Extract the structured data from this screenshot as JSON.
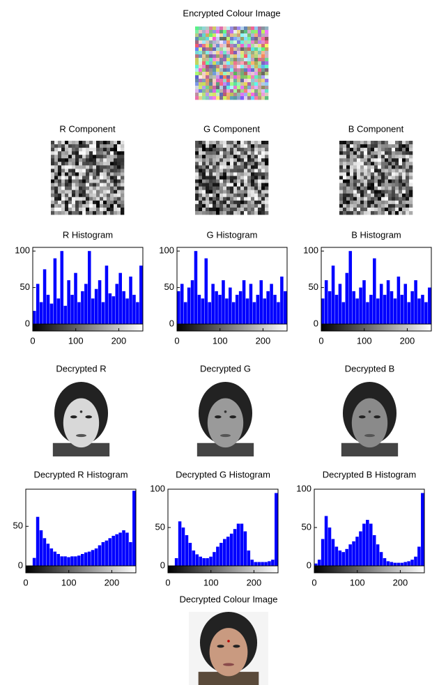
{
  "images": [
    {
      "title": "Encrypted Colour Image"
    },
    {
      "title": "R Component"
    },
    {
      "title": "G Component"
    },
    {
      "title": "B Component"
    },
    {
      "title": "Decrypted R"
    },
    {
      "title": "Decrypted G"
    },
    {
      "title": "Decrypted B"
    },
    {
      "title": "Decrypted Colour Image"
    }
  ],
  "chart_data": [
    {
      "type": "histogram",
      "title": "R Histogram",
      "color": "#0000ff",
      "bins": [
        0,
        8,
        16,
        24,
        32,
        40,
        48,
        56,
        64,
        72,
        80,
        88,
        96,
        104,
        112,
        120,
        128,
        136,
        144,
        152,
        160,
        168,
        176,
        184,
        192,
        200,
        208,
        216,
        224,
        232,
        240,
        248,
        256
      ],
      "counts": [
        18,
        55,
        30,
        75,
        40,
        28,
        90,
        35,
        100,
        25,
        60,
        40,
        70,
        30,
        45,
        55,
        100,
        35,
        48,
        60,
        30,
        80,
        42,
        38,
        55,
        70,
        45,
        35,
        65,
        40,
        30,
        80
      ],
      "xlim": [
        0,
        256
      ],
      "ylim": [
        0,
        105
      ],
      "xticks": [
        0,
        100,
        200
      ],
      "yticks": [
        0,
        50,
        100
      ]
    },
    {
      "type": "histogram",
      "title": "G Histogram",
      "color": "#0000ff",
      "bins": [
        0,
        8,
        16,
        24,
        32,
        40,
        48,
        56,
        64,
        72,
        80,
        88,
        96,
        104,
        112,
        120,
        128,
        136,
        144,
        152,
        160,
        168,
        176,
        184,
        192,
        200,
        208,
        216,
        224,
        232,
        240,
        248,
        256
      ],
      "counts": [
        45,
        55,
        30,
        50,
        60,
        100,
        40,
        35,
        90,
        30,
        55,
        45,
        40,
        60,
        35,
        50,
        30,
        40,
        45,
        60,
        35,
        55,
        30,
        40,
        60,
        35,
        45,
        55,
        40,
        30,
        65,
        45
      ],
      "xlim": [
        0,
        256
      ],
      "ylim": [
        0,
        105
      ],
      "xticks": [
        0,
        100,
        200
      ],
      "yticks": [
        0,
        50,
        100
      ]
    },
    {
      "type": "histogram",
      "title": "B Histogram",
      "color": "#0000ff",
      "bins": [
        0,
        8,
        16,
        24,
        32,
        40,
        48,
        56,
        64,
        72,
        80,
        88,
        96,
        104,
        112,
        120,
        128,
        136,
        144,
        152,
        160,
        168,
        176,
        184,
        192,
        200,
        208,
        216,
        224,
        232,
        240,
        248,
        256
      ],
      "counts": [
        35,
        60,
        45,
        80,
        40,
        55,
        30,
        70,
        100,
        45,
        35,
        50,
        60,
        30,
        40,
        90,
        35,
        55,
        40,
        60,
        45,
        35,
        65,
        40,
        55,
        30,
        45,
        60,
        35,
        40,
        30,
        50
      ],
      "xlim": [
        0,
        256
      ],
      "ylim": [
        0,
        105
      ],
      "xticks": [
        0,
        100,
        200
      ],
      "yticks": [
        0,
        50,
        100
      ]
    },
    {
      "type": "histogram",
      "title": "Decrypted R Histogram",
      "color": "#0000ff",
      "bins": [
        0,
        8,
        16,
        24,
        32,
        40,
        48,
        56,
        64,
        72,
        80,
        88,
        96,
        104,
        112,
        120,
        128,
        136,
        144,
        152,
        160,
        168,
        176,
        184,
        192,
        200,
        208,
        216,
        224,
        232,
        240,
        248,
        256
      ],
      "counts": [
        0,
        0,
        10,
        62,
        45,
        35,
        28,
        22,
        18,
        15,
        12,
        12,
        11,
        12,
        12,
        13,
        15,
        17,
        18,
        20,
        22,
        26,
        30,
        32,
        35,
        38,
        40,
        42,
        45,
        42,
        30,
        95
      ],
      "xlim": [
        0,
        256
      ],
      "ylim": [
        0,
        97
      ],
      "xticks": [
        0,
        100,
        200
      ],
      "yticks": [
        0,
        50
      ]
    },
    {
      "type": "histogram",
      "title": "Decrypted G Histogram",
      "color": "#0000ff",
      "bins": [
        0,
        8,
        16,
        24,
        32,
        40,
        48,
        56,
        64,
        72,
        80,
        88,
        96,
        104,
        112,
        120,
        128,
        136,
        144,
        152,
        160,
        168,
        176,
        184,
        192,
        200,
        208,
        216,
        224,
        232,
        240,
        248,
        256
      ],
      "counts": [
        0,
        0,
        10,
        58,
        50,
        40,
        30,
        20,
        15,
        12,
        10,
        10,
        12,
        18,
        25,
        30,
        35,
        38,
        42,
        48,
        55,
        55,
        45,
        20,
        8,
        5,
        5,
        5,
        5,
        6,
        8,
        95
      ],
      "xlim": [
        0,
        256
      ],
      "ylim": [
        0,
        100
      ],
      "xticks": [
        0,
        100,
        200
      ],
      "yticks": [
        0,
        50,
        100
      ]
    },
    {
      "type": "histogram",
      "title": "Decrypted B Histogram",
      "color": "#0000ff",
      "bins": [
        0,
        8,
        16,
        24,
        32,
        40,
        48,
        56,
        64,
        72,
        80,
        88,
        96,
        104,
        112,
        120,
        128,
        136,
        144,
        152,
        160,
        168,
        176,
        184,
        192,
        200,
        208,
        216,
        224,
        232,
        240,
        248,
        256
      ],
      "counts": [
        3,
        8,
        35,
        65,
        50,
        35,
        25,
        20,
        18,
        22,
        28,
        32,
        38,
        45,
        55,
        60,
        55,
        40,
        28,
        18,
        10,
        6,
        5,
        4,
        4,
        4,
        5,
        6,
        8,
        12,
        25,
        95
      ],
      "xlim": [
        0,
        256
      ],
      "ylim": [
        0,
        100
      ],
      "xticks": [
        0,
        100,
        200
      ],
      "yticks": [
        0,
        50,
        100
      ]
    }
  ]
}
